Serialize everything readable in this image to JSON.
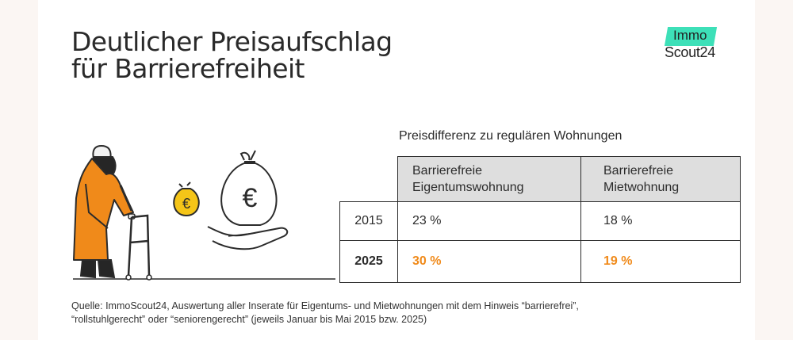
{
  "title": {
    "line1": "Deutlicher Preisaufschlag",
    "line2": "für Barrierefreiheit"
  },
  "logo": {
    "line1": "Immo",
    "line2": "Scout24"
  },
  "table": {
    "caption": "Preisdifferenz zu regulären Wohnungen",
    "headers": [
      {
        "line1": "Barrierefreie",
        "line2": "Eigentumswohnung"
      },
      {
        "line1": "Barrierefreie",
        "line2": "Mietwohnung"
      }
    ],
    "rows": [
      {
        "year": "2015",
        "values": [
          "23 %",
          "18 %"
        ]
      },
      {
        "year": "2025",
        "values": [
          "30 %",
          "19 %"
        ]
      }
    ]
  },
  "illustration": {
    "coin_symbol": "€",
    "bag_symbol": "€"
  },
  "source": {
    "line1": "Quelle: ImmoScout24, Auswertung aller Inserate für Eigentums- und Mietwohnungen mit dem Hinweis “barrierefrei”,",
    "line2": "“rollstuhlgerecht” oder “seniorengerecht” (jeweils Januar bis Mai 2015 bzw. 2025)"
  },
  "colors": {
    "accent": "#f08a1a",
    "logo_mark": "#3de0b8",
    "coin": "#f5c518",
    "header_bg": "#dedede",
    "text": "#2b2b2b"
  }
}
